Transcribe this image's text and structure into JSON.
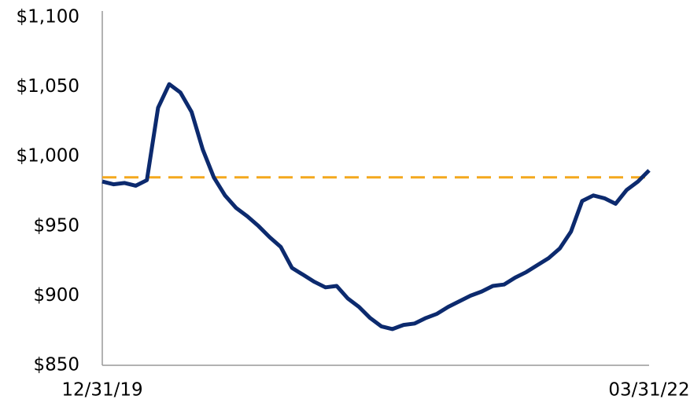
{
  "chart_data": {
    "type": "line",
    "categories": [
      "12/31/19",
      null,
      null,
      null,
      null,
      null,
      null,
      null,
      null,
      null,
      null,
      null,
      null,
      null,
      null,
      null,
      null,
      null,
      null,
      null,
      null,
      null,
      null,
      null,
      null,
      null,
      null,
      null,
      null,
      null,
      null,
      null,
      null,
      null,
      null,
      null,
      null,
      null,
      null,
      null,
      null,
      null,
      null,
      null,
      null,
      null,
      null,
      null,
      null,
      "03/31/22"
    ],
    "series": [
      {
        "color": "#0c2a6e",
        "values": [
          982,
          980,
          981,
          979,
          983,
          1035,
          1052,
          1046,
          1032,
          1005,
          985,
          972,
          963,
          957,
          950,
          942,
          935,
          920,
          915,
          910,
          906,
          907,
          898,
          892,
          884,
          878,
          876,
          879,
          880,
          884,
          887,
          892,
          896,
          900,
          903,
          907,
          908,
          913,
          917,
          922,
          927,
          934,
          946,
          968,
          972,
          970,
          966,
          976,
          982,
          990
        ]
      }
    ],
    "reference_line": {
      "value": 985,
      "color": "#f4a81d"
    },
    "ylim": [
      850,
      1100
    ],
    "yticks": [
      {
        "value": 850,
        "label": "$850"
      },
      {
        "value": 900,
        "label": "$900"
      },
      {
        "value": 950,
        "label": "$950"
      },
      {
        "value": 1000,
        "label": "$1,000"
      },
      {
        "value": 1050,
        "label": "$1,050"
      },
      {
        "value": 1100,
        "label": "$1,100"
      }
    ]
  }
}
